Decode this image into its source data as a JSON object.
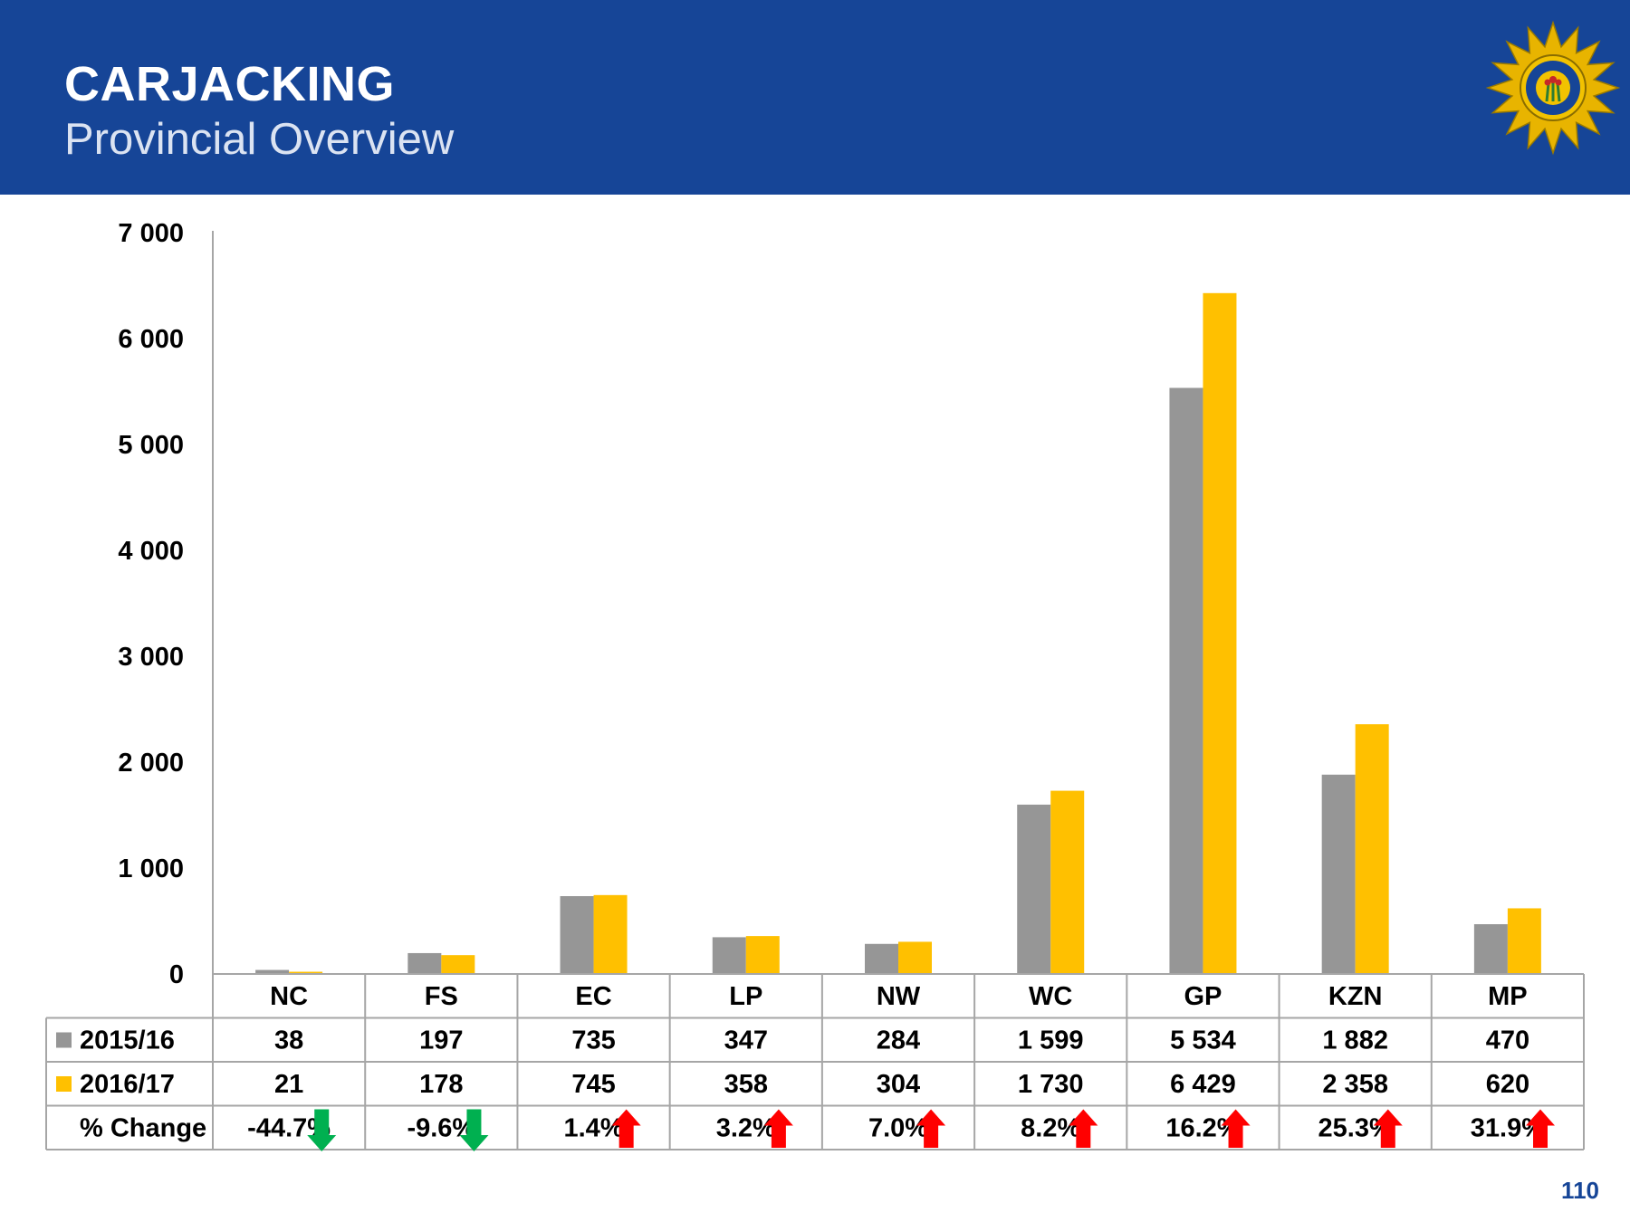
{
  "header": {
    "title": "CARJACKING",
    "subtitle": "Provincial Overview"
  },
  "logo": {
    "icon": "saps-star-badge-icon"
  },
  "page_number": "110",
  "colors": {
    "header_bg": "#164597",
    "series_2015": "#969696",
    "series_2016": "#FFC000",
    "arrow_up": "#FF0000",
    "arrow_down": "#00B050"
  },
  "chart_data": {
    "type": "bar",
    "title": "",
    "xlabel": "",
    "ylabel": "",
    "ylim": [
      0,
      7000
    ],
    "yticks": [
      0,
      1000,
      2000,
      3000,
      4000,
      5000,
      6000,
      7000
    ],
    "ytick_labels": [
      "0",
      "1 000",
      "2 000",
      "3 000",
      "4 000",
      "5 000",
      "6 000",
      "7 000"
    ],
    "categories": [
      "NC",
      "FS",
      "EC",
      "LP",
      "NW",
      "WC",
      "GP",
      "KZN",
      "MP"
    ],
    "series": [
      {
        "name": "2015/16",
        "color": "#969696",
        "values": [
          38,
          197,
          735,
          347,
          284,
          1599,
          5534,
          1882,
          470
        ],
        "labels": [
          "38",
          "197",
          "735",
          "347",
          "284",
          "1 599",
          "5 534",
          "1 882",
          "470"
        ]
      },
      {
        "name": "2016/17",
        "color": "#FFC000",
        "values": [
          21,
          178,
          745,
          358,
          304,
          1730,
          6429,
          2358,
          620
        ],
        "labels": [
          "21",
          "178",
          "745",
          "358",
          "304",
          "1 730",
          "6 429",
          "2 358",
          "620"
        ]
      }
    ],
    "change_row": {
      "label": "% Change",
      "values": [
        "-44.7%",
        "-9.6%",
        "1.4%",
        "3.2%",
        "7.0%",
        "8.2%",
        "16.2%",
        "25.3%",
        "31.9%"
      ],
      "directions": [
        "down",
        "down",
        "up",
        "up",
        "up",
        "up",
        "up",
        "up",
        "up"
      ]
    },
    "grid": false,
    "legend": "table-left"
  }
}
